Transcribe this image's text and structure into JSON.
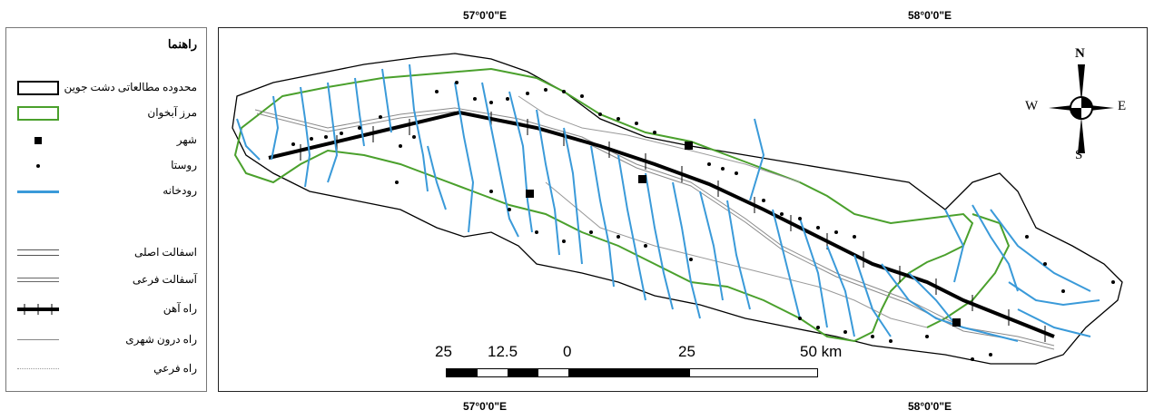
{
  "legend": {
    "title": "راهنما",
    "items": [
      {
        "label": "محدوده مطالعاتی دشت جوین",
        "symbol": "study-area-box"
      },
      {
        "label": "مرز آبخوان",
        "symbol": "aquifer-box"
      },
      {
        "label": "شهر",
        "symbol": "city-square"
      },
      {
        "label": "روستا",
        "symbol": "village-dot"
      },
      {
        "label": "رودخانه",
        "symbol": "river-line"
      },
      {
        "label": "اسفالت اصلی",
        "symbol": "main-road-line"
      },
      {
        "label": "آسفالت فرعی",
        "symbol": "secondary-road-line"
      },
      {
        "label": "راه آهن",
        "symbol": "railway-line"
      },
      {
        "label": "راه درون شهری",
        "symbol": "urban-road-line"
      },
      {
        "label": "راه فرعي",
        "symbol": "minor-road-line"
      }
    ]
  },
  "coordinates": {
    "top_left": "57°0'0\"E",
    "top_right": "58°0'0\"E",
    "bottom_left": "57°0'0\"E",
    "bottom_right": "58°0'0\"E"
  },
  "compass": {
    "n": "N",
    "s": "S",
    "e": "E",
    "w": "W"
  },
  "scale_bar": {
    "labels": [
      "25",
      "12.5",
      "0",
      "25",
      "50 km"
    ]
  },
  "colors": {
    "river": "#3a9ad9",
    "aquifer_boundary": "#4aa02c",
    "study_area_boundary": "#000000",
    "railway": "#000000",
    "road": "#8a8a8a"
  }
}
